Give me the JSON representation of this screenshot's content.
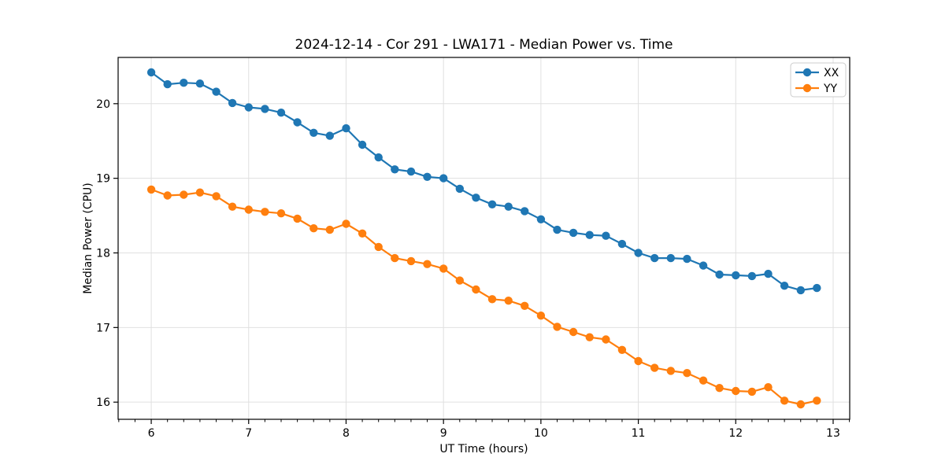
{
  "chart_data": {
    "type": "line",
    "title": "2024-12-14 - Cor 291 - LWA171 - Median Power vs. Time",
    "xlabel": "UT Time (hours)",
    "ylabel": "Median Power (CPU)",
    "x": [
      6.0,
      6.167,
      6.333,
      6.5,
      6.667,
      6.833,
      7.0,
      7.167,
      7.333,
      7.5,
      7.667,
      7.833,
      8.0,
      8.167,
      8.333,
      8.5,
      8.667,
      8.833,
      9.0,
      9.167,
      9.333,
      9.5,
      9.667,
      9.833,
      10.0,
      10.167,
      10.333,
      10.5,
      10.667,
      10.833,
      11.0,
      11.167,
      11.333,
      11.5,
      11.667,
      11.833,
      12.0,
      12.167,
      12.333,
      12.5,
      12.667,
      12.833
    ],
    "series": [
      {
        "name": "XX",
        "color": "#1f77b4",
        "values": [
          20.42,
          20.26,
          20.28,
          20.27,
          20.16,
          20.01,
          19.95,
          19.93,
          19.88,
          19.75,
          19.61,
          19.57,
          19.67,
          19.45,
          19.28,
          19.12,
          19.09,
          19.02,
          19.0,
          18.86,
          18.74,
          18.65,
          18.62,
          18.56,
          18.45,
          18.31,
          18.27,
          18.24,
          18.23,
          18.12,
          18.0,
          17.93,
          17.93,
          17.92,
          17.83,
          17.71,
          17.7,
          17.69,
          17.72,
          17.56,
          17.5,
          17.53
        ]
      },
      {
        "name": "YY",
        "color": "#ff7f0e",
        "values": [
          18.85,
          18.77,
          18.78,
          18.81,
          18.76,
          18.62,
          18.58,
          18.55,
          18.53,
          18.46,
          18.33,
          18.31,
          18.39,
          18.26,
          18.08,
          17.93,
          17.89,
          17.85,
          17.79,
          17.63,
          17.51,
          17.38,
          17.36,
          17.29,
          17.16,
          17.01,
          16.94,
          16.87,
          16.84,
          16.7,
          16.55,
          16.46,
          16.42,
          16.39,
          16.29,
          16.19,
          16.15,
          16.14,
          16.2,
          16.02,
          15.97,
          16.02
        ]
      }
    ],
    "xlim": [
      5.66,
      13.17
    ],
    "ylim": [
      15.77,
      20.62
    ],
    "xticks": [
      6,
      7,
      8,
      9,
      10,
      11,
      12,
      13
    ],
    "yticks": [
      16,
      17,
      18,
      19,
      20
    ],
    "x_minor_step": 0.16667,
    "grid": true,
    "grid_color": "#e0e0e0",
    "axis_color": "#000000",
    "text_color": "#000000",
    "background": "#ffffff",
    "legend": {
      "position": "upper right",
      "entries": [
        "XX",
        "YY"
      ],
      "edge_color": "#cccccc"
    }
  }
}
